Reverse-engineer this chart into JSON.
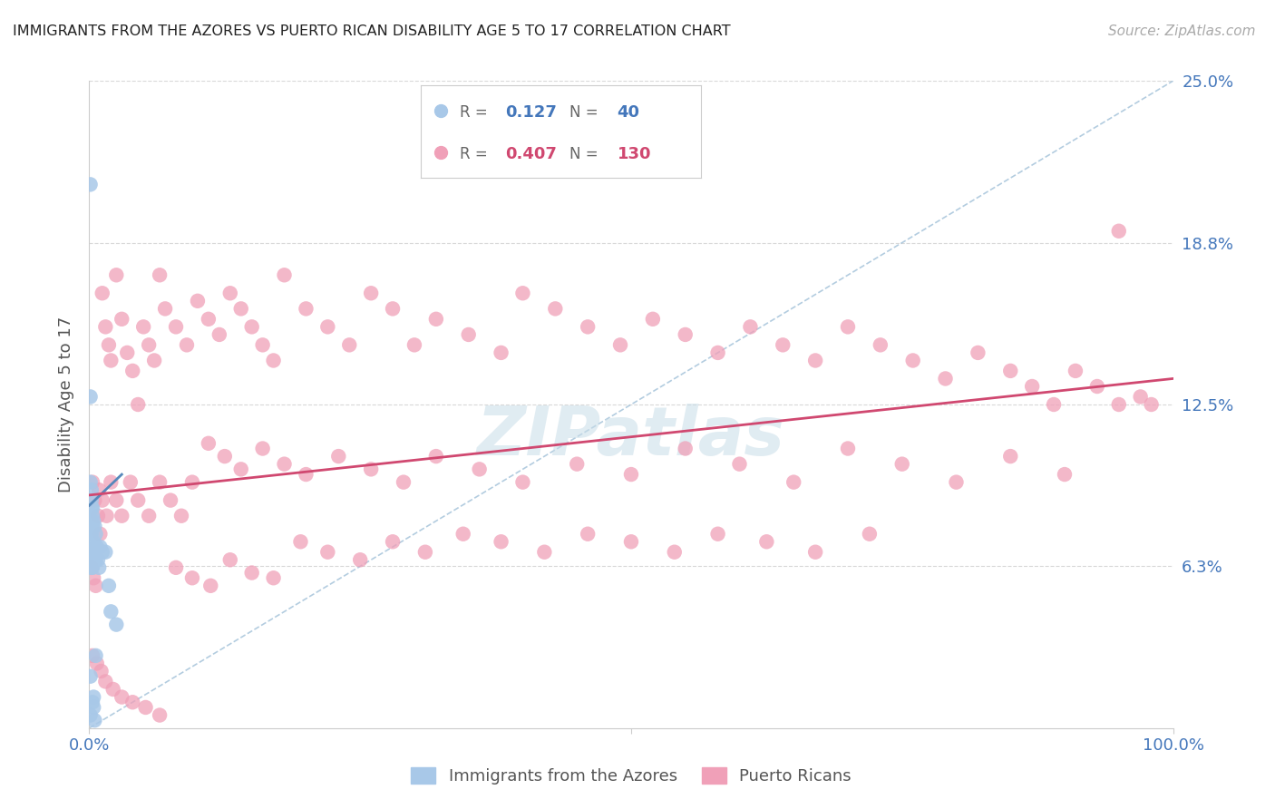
{
  "title": "IMMIGRANTS FROM THE AZORES VS PUERTO RICAN DISABILITY AGE 5 TO 17 CORRELATION CHART",
  "source": "Source: ZipAtlas.com",
  "ylabel": "Disability Age 5 to 17",
  "xlim": [
    0,
    1.0
  ],
  "ylim": [
    0,
    0.25
  ],
  "color_blue": "#a8c8e8",
  "color_pink": "#f0a0b8",
  "color_trend_blue": "#5588bb",
  "color_trend_pink": "#d04870",
  "color_diag": "#a0c0d8",
  "tick_label_color": "#4477bb",
  "watermark_color": "#c8dde8",
  "blue_scatter_x": [
    0.001,
    0.001,
    0.001,
    0.001,
    0.001,
    0.002,
    0.002,
    0.002,
    0.002,
    0.002,
    0.003,
    0.003,
    0.003,
    0.003,
    0.004,
    0.004,
    0.004,
    0.005,
    0.005,
    0.006,
    0.006,
    0.007,
    0.008,
    0.009,
    0.01,
    0.012,
    0.015,
    0.018,
    0.02,
    0.025,
    0.001,
    0.001,
    0.002,
    0.002,
    0.003,
    0.003,
    0.004,
    0.004,
    0.005,
    0.006
  ],
  "blue_scatter_y": [
    0.21,
    0.075,
    0.065,
    0.02,
    0.005,
    0.088,
    0.08,
    0.075,
    0.068,
    0.062,
    0.085,
    0.078,
    0.07,
    0.062,
    0.08,
    0.072,
    0.065,
    0.078,
    0.068,
    0.075,
    0.065,
    0.07,
    0.065,
    0.062,
    0.07,
    0.068,
    0.068,
    0.055,
    0.045,
    0.04,
    0.128,
    0.095,
    0.092,
    0.085,
    0.082,
    0.01,
    0.012,
    0.008,
    0.003,
    0.028
  ],
  "pink_scatter_x": [
    0.003,
    0.005,
    0.008,
    0.01,
    0.012,
    0.015,
    0.018,
    0.02,
    0.025,
    0.03,
    0.035,
    0.04,
    0.045,
    0.05,
    0.055,
    0.06,
    0.065,
    0.07,
    0.08,
    0.09,
    0.1,
    0.11,
    0.12,
    0.13,
    0.14,
    0.15,
    0.16,
    0.17,
    0.18,
    0.2,
    0.22,
    0.24,
    0.26,
    0.28,
    0.3,
    0.32,
    0.35,
    0.38,
    0.4,
    0.43,
    0.46,
    0.49,
    0.52,
    0.55,
    0.58,
    0.61,
    0.64,
    0.67,
    0.7,
    0.73,
    0.76,
    0.79,
    0.82,
    0.85,
    0.87,
    0.89,
    0.91,
    0.93,
    0.95,
    0.97,
    0.002,
    0.004,
    0.006,
    0.009,
    0.012,
    0.016,
    0.02,
    0.025,
    0.03,
    0.038,
    0.045,
    0.055,
    0.065,
    0.075,
    0.085,
    0.095,
    0.11,
    0.125,
    0.14,
    0.16,
    0.18,
    0.2,
    0.23,
    0.26,
    0.29,
    0.32,
    0.36,
    0.4,
    0.45,
    0.5,
    0.55,
    0.6,
    0.65,
    0.7,
    0.75,
    0.8,
    0.85,
    0.9,
    0.95,
    0.98,
    0.003,
    0.007,
    0.011,
    0.015,
    0.022,
    0.03,
    0.04,
    0.052,
    0.065,
    0.08,
    0.095,
    0.112,
    0.13,
    0.15,
    0.17,
    0.195,
    0.22,
    0.25,
    0.28,
    0.31,
    0.345,
    0.38,
    0.42,
    0.46,
    0.5,
    0.54,
    0.58,
    0.625,
    0.67,
    0.72
  ],
  "pink_scatter_y": [
    0.095,
    0.088,
    0.082,
    0.075,
    0.168,
    0.155,
    0.148,
    0.142,
    0.175,
    0.158,
    0.145,
    0.138,
    0.125,
    0.155,
    0.148,
    0.142,
    0.175,
    0.162,
    0.155,
    0.148,
    0.165,
    0.158,
    0.152,
    0.168,
    0.162,
    0.155,
    0.148,
    0.142,
    0.175,
    0.162,
    0.155,
    0.148,
    0.168,
    0.162,
    0.148,
    0.158,
    0.152,
    0.145,
    0.168,
    0.162,
    0.155,
    0.148,
    0.158,
    0.152,
    0.145,
    0.155,
    0.148,
    0.142,
    0.155,
    0.148,
    0.142,
    0.135,
    0.145,
    0.138,
    0.132,
    0.125,
    0.138,
    0.132,
    0.125,
    0.128,
    0.062,
    0.058,
    0.055,
    0.092,
    0.088,
    0.082,
    0.095,
    0.088,
    0.082,
    0.095,
    0.088,
    0.082,
    0.095,
    0.088,
    0.082,
    0.095,
    0.11,
    0.105,
    0.1,
    0.108,
    0.102,
    0.098,
    0.105,
    0.1,
    0.095,
    0.105,
    0.1,
    0.095,
    0.102,
    0.098,
    0.108,
    0.102,
    0.095,
    0.108,
    0.102,
    0.095,
    0.105,
    0.098,
    0.192,
    0.125,
    0.028,
    0.025,
    0.022,
    0.018,
    0.015,
    0.012,
    0.01,
    0.008,
    0.005,
    0.062,
    0.058,
    0.055,
    0.065,
    0.06,
    0.058,
    0.072,
    0.068,
    0.065,
    0.072,
    0.068,
    0.075,
    0.072,
    0.068,
    0.075,
    0.072,
    0.068,
    0.075,
    0.072,
    0.068,
    0.075
  ]
}
